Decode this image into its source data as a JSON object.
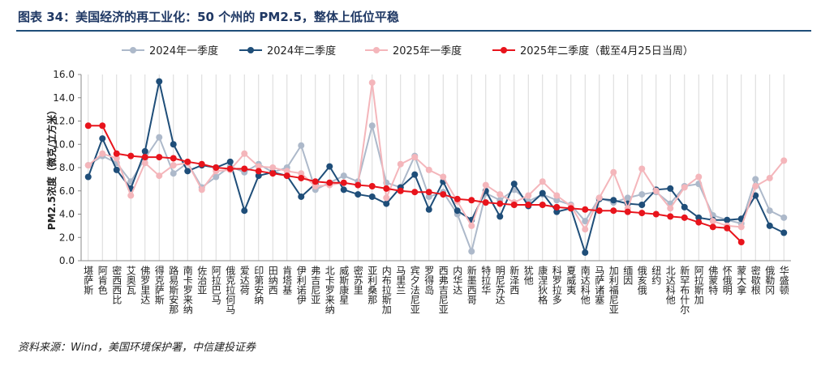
{
  "chart_data": {
    "type": "line",
    "title": "图表 34：美国经济的再工业化：50 个州的 PM2.5，整体上低位平稳",
    "y_label": "PM2.5浓度（微克/立方米）",
    "source": "资料来源：Wind，美国环境保护署，中信建投证券",
    "categories": [
      "堪萨斯",
      "阿肯色",
      "密西西比",
      "艾奥瓦",
      "佛罗里达",
      "得克萨斯",
      "路易斯安那",
      "南卡罗来纳",
      "佐治亚",
      "阿拉巴马",
      "俄克拉何马",
      "爱达荷",
      "印第安纳",
      "田纳西",
      "肯塔基",
      "伊利诺伊",
      "弗吉尼亚",
      "北卡罗来纳",
      "威斯康星",
      "密苏里",
      "亚利桑那",
      "内布拉斯加",
      "马里兰",
      "宾夕法尼亚",
      "罗得岛",
      "西弗吉尼亚",
      "内华达",
      "新墨西哥",
      "特拉华",
      "明尼苏达",
      "新泽西",
      "犹他",
      "康涅狄格",
      "科罗拉多",
      "夏威夷",
      "南达科他",
      "马萨诸塞",
      "加利福尼亚",
      "缅因",
      "俄亥俄",
      "纽约",
      "北达科他",
      "新罕布什尔",
      "阿拉斯加",
      "佛蒙特",
      "怀俄明",
      "蒙大拿",
      "密歇根",
      "俄勒冈",
      "华盛顿"
    ],
    "series": [
      {
        "name": "2024年一季度",
        "color": "#adb9ca",
        "values": [
          8.2,
          9.0,
          8.4,
          6.8,
          8.8,
          10.6,
          7.5,
          8.4,
          6.3,
          7.2,
          8.1,
          7.6,
          8.3,
          7.6,
          8.0,
          9.9,
          6.1,
          6.7,
          7.3,
          6.8,
          11.6,
          6.7,
          6.3,
          9.0,
          5.5,
          5.9,
          4.0,
          0.8,
          5.8,
          5.2,
          6.1,
          5.1,
          5.7,
          5.2,
          4.8,
          3.4,
          5.4,
          5.0,
          5.4,
          5.7,
          5.9,
          4.9,
          6.4,
          6.6,
          3.9,
          3.5,
          3.2,
          7.0,
          4.3,
          3.7
        ]
      },
      {
        "name": "2024年二季度",
        "color": "#1f4e79",
        "values": [
          7.2,
          10.5,
          7.8,
          6.2,
          9.4,
          15.4,
          10.0,
          7.7,
          8.2,
          8.0,
          8.5,
          4.3,
          7.3,
          7.6,
          7.3,
          5.5,
          6.6,
          8.1,
          6.1,
          5.7,
          5.5,
          4.9,
          6.3,
          7.4,
          4.4,
          6.8,
          4.3,
          3.5,
          6.0,
          3.8,
          6.6,
          4.7,
          5.8,
          4.2,
          4.5,
          0.7,
          5.3,
          5.2,
          4.9,
          4.8,
          6.1,
          6.2,
          4.6,
          3.7,
          3.5,
          3.5,
          3.6,
          5.6,
          3.0,
          2.4
        ]
      },
      {
        "name": "2025年一季度",
        "color": "#f4b6bb",
        "values": [
          8.2,
          9.2,
          8.8,
          5.6,
          8.4,
          7.3,
          8.2,
          8.4,
          6.1,
          7.7,
          7.8,
          9.2,
          8.1,
          8.0,
          7.7,
          7.5,
          6.4,
          6.5,
          6.7,
          6.5,
          15.3,
          5.4,
          8.3,
          8.9,
          7.8,
          7.2,
          5.1,
          3.0,
          6.5,
          5.7,
          5.0,
          5.6,
          6.8,
          5.6,
          4.7,
          2.7,
          5.4,
          7.6,
          4.5,
          7.9,
          6.0,
          4.5,
          6.3,
          7.2,
          3.4,
          3.0,
          2.9,
          6.4,
          7.1,
          8.6
        ]
      },
      {
        "name": "2025年二季度（截至4月25日当周）",
        "color": "#e8141c",
        "values": [
          11.6,
          11.6,
          9.2,
          9.0,
          8.9,
          8.9,
          8.8,
          8.5,
          8.3,
          8.0,
          7.9,
          7.9,
          7.7,
          7.5,
          7.3,
          7.1,
          6.8,
          6.7,
          6.7,
          6.5,
          6.4,
          6.2,
          6.0,
          5.9,
          5.9,
          5.7,
          5.3,
          5.2,
          5.0,
          4.9,
          4.8,
          4.8,
          4.8,
          4.6,
          4.5,
          4.4,
          4.3,
          4.3,
          4.2,
          4.1,
          4.0,
          3.8,
          3.7,
          3.3,
          2.9,
          2.8,
          1.6,
          null,
          null,
          null
        ]
      }
    ],
    "ylim": [
      0,
      16
    ],
    "yticks": [
      {
        "value": 0,
        "label": "0.0"
      },
      {
        "value": 2,
        "label": "2.0"
      },
      {
        "value": 4,
        "label": "4.0"
      },
      {
        "value": 6,
        "label": "6.0"
      },
      {
        "value": 8,
        "label": "8.0"
      },
      {
        "value": 10,
        "label": "10.0"
      },
      {
        "value": 12,
        "label": "12.0"
      },
      {
        "value": 14,
        "label": "14.0"
      },
      {
        "value": 16,
        "label": "16.0"
      }
    ],
    "grid": true
  }
}
